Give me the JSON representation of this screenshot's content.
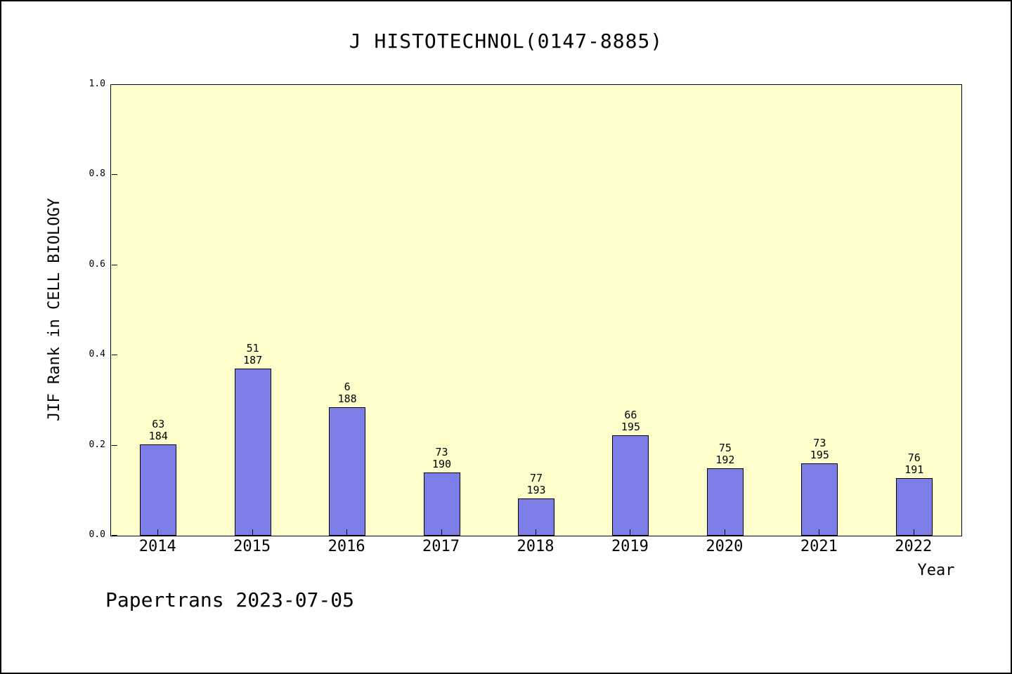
{
  "footer": "Papertrans 2023-07-05",
  "chart_data": {
    "type": "bar",
    "title": "J HISTOTECHNOL(0147-8885)",
    "xlabel": "Year",
    "ylabel": "JIF Rank in CELL BIOLOGY",
    "ylim": [
      0,
      1.0
    ],
    "grid": false,
    "legend": false,
    "categories": [
      "2014",
      "2015",
      "2016",
      "2017",
      "2018",
      "2019",
      "2020",
      "2021",
      "2022"
    ],
    "values": [
      0.202,
      0.371,
      0.285,
      0.14,
      0.082,
      0.222,
      0.15,
      0.16,
      0.128
    ],
    "bar_labels": [
      {
        "rank": "63",
        "total": "184"
      },
      {
        "rank": "51",
        "total": "187"
      },
      {
        "rank": "6",
        "total": "188"
      },
      {
        "rank": "73",
        "total": "190"
      },
      {
        "rank": "77",
        "total": "193"
      },
      {
        "rank": "66",
        "total": "195"
      },
      {
        "rank": "75",
        "total": "192"
      },
      {
        "rank": "73",
        "total": "195"
      },
      {
        "rank": "76",
        "total": "191"
      }
    ],
    "yticks": [
      {
        "v": 0.0,
        "label": "0.0"
      },
      {
        "v": 0.2,
        "label": "0.2"
      },
      {
        "v": 0.4,
        "label": "0.4"
      },
      {
        "v": 0.6,
        "label": "0.6"
      },
      {
        "v": 0.8,
        "label": "0.8"
      },
      {
        "v": 1.0,
        "label": "1.0"
      }
    ],
    "colors": {
      "plot_bg": "#ffffcc",
      "bar_fill": "#7d7de8",
      "bar_border": "#000000",
      "text": "#000000"
    }
  }
}
